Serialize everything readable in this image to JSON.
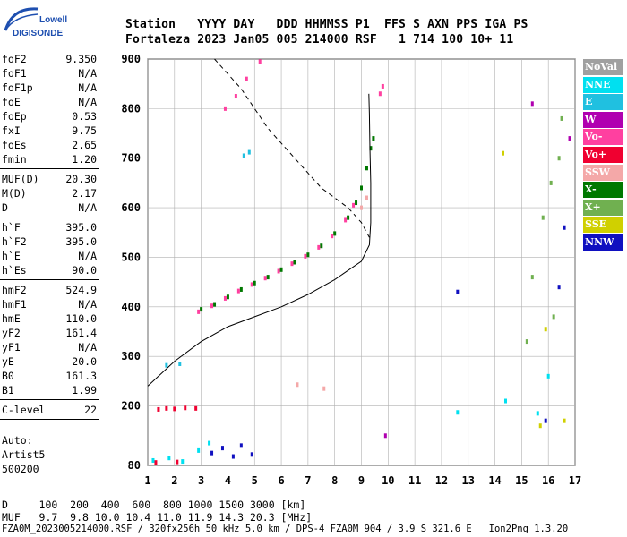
{
  "logo": {
    "line1": "Lowell",
    "line2": "DIGISONDE"
  },
  "header": {
    "labels": "Station   YYYY DAY   DDD HHMMSS P1  FFS S AXN PPS IGA PS",
    "values": "Fortaleza 2023 Jan05 005 214000 RSF   1 714 100 10+ 11"
  },
  "params": {
    "group1": [
      {
        "label": "foF2",
        "value": "9.350"
      },
      {
        "label": "foF1",
        "value": "N/A"
      },
      {
        "label": "foF1p",
        "value": "N/A"
      },
      {
        "label": "foE",
        "value": "N/A"
      },
      {
        "label": "foEp",
        "value": "0.53"
      },
      {
        "label": "fxI",
        "value": "9.75"
      },
      {
        "label": "foEs",
        "value": "2.65"
      },
      {
        "label": "fmin",
        "value": "1.20"
      }
    ],
    "group2": [
      {
        "label": "MUF(D)",
        "value": "20.30"
      },
      {
        "label": "M(D)",
        "value": "2.17"
      },
      {
        "label": "D",
        "value": "N/A"
      }
    ],
    "group3": [
      {
        "label": "h`F",
        "value": "395.0"
      },
      {
        "label": "h`F2",
        "value": "395.0"
      },
      {
        "label": "h`E",
        "value": "N/A"
      },
      {
        "label": "h`Es",
        "value": "90.0"
      }
    ],
    "group4": [
      {
        "label": "hmF2",
        "value": "524.9"
      },
      {
        "label": "hmF1",
        "value": "N/A"
      },
      {
        "label": "hmE",
        "value": "110.0"
      },
      {
        "label": "yF2",
        "value": "161.4"
      },
      {
        "label": "yF1",
        "value": "N/A"
      },
      {
        "label": "yE",
        "value": "20.0"
      },
      {
        "label": "B0",
        "value": "161.3"
      },
      {
        "label": "B1",
        "value": "1.99"
      }
    ],
    "group5": [
      {
        "label": "C-level",
        "value": "22"
      }
    ]
  },
  "auto": {
    "line1": "Auto:",
    "line2": "Artist5",
    "line3": "500200"
  },
  "legend": [
    {
      "label": "NoVal",
      "color": "#a0a0a0"
    },
    {
      "label": "NNE",
      "color": "#00e0f0"
    },
    {
      "label": "E",
      "color": "#20c0e0"
    },
    {
      "label": "W",
      "color": "#b000b0"
    },
    {
      "label": "Vo-",
      "color": "#ff40a0"
    },
    {
      "label": "Vo+",
      "color": "#f00030"
    },
    {
      "label": "SSW",
      "color": "#f4a8a8"
    },
    {
      "label": "X-",
      "color": "#007800"
    },
    {
      "label": "X+",
      "color": "#70b050"
    },
    {
      "label": "SSE",
      "color": "#d0d000"
    },
    {
      "label": "NNW",
      "color": "#1010c0"
    }
  ],
  "footer": {
    "line1": "D     100  200  400  600  800 1000 1500 3000 [km]",
    "line2": "MUF   9.7  9.8 10.0 10.4 11.0 11.9 14.3 20.3 [MHz]",
    "line3": "FZA0M_2023005214000.RSF / 320fx256h 50 kHz 5.0 km / DPS-4 FZA0M 904 / 3.9 S 321.6 E   Ion2Png 1.3.20"
  },
  "chart_data": {
    "type": "scatter",
    "title": "",
    "xlabel": "",
    "ylabel": "",
    "xlim": [
      1,
      17
    ],
    "ylim": [
      80,
      900
    ],
    "x_ticks": [
      1,
      2,
      3,
      4,
      5,
      6,
      7,
      8,
      9,
      10,
      11,
      12,
      13,
      14,
      15,
      16,
      17
    ],
    "y_ticks": [
      80,
      200,
      300,
      400,
      500,
      600,
      700,
      800,
      900
    ],
    "grid": true,
    "series": [
      {
        "name": "X-",
        "points": [
          [
            3.0,
            395
          ],
          [
            3.5,
            405
          ],
          [
            4.0,
            420
          ],
          [
            4.5,
            435
          ],
          [
            5.0,
            448
          ],
          [
            5.5,
            460
          ],
          [
            6.0,
            475
          ],
          [
            6.5,
            490
          ],
          [
            7.0,
            505
          ],
          [
            7.5,
            523
          ],
          [
            8.0,
            548
          ],
          [
            8.5,
            580
          ],
          [
            8.8,
            610
          ],
          [
            9.0,
            640
          ],
          [
            9.2,
            680
          ],
          [
            9.35,
            720
          ],
          [
            9.45,
            740
          ]
        ]
      },
      {
        "name": "Vo-",
        "points": [
          [
            2.9,
            390
          ],
          [
            3.4,
            402
          ],
          [
            3.9,
            417
          ],
          [
            4.4,
            432
          ],
          [
            4.9,
            445
          ],
          [
            5.4,
            458
          ],
          [
            5.9,
            472
          ],
          [
            6.4,
            487
          ],
          [
            6.9,
            502
          ],
          [
            7.4,
            520
          ],
          [
            7.9,
            543
          ],
          [
            8.4,
            575
          ],
          [
            8.7,
            605
          ],
          [
            3.9,
            800
          ],
          [
            4.3,
            825
          ],
          [
            4.7,
            860
          ],
          [
            5.2,
            895
          ],
          [
            9.7,
            830
          ],
          [
            9.8,
            845
          ]
        ]
      },
      {
        "name": "Vo+",
        "points": [
          [
            1.4,
            193
          ],
          [
            1.7,
            195
          ],
          [
            2.0,
            194
          ],
          [
            2.4,
            196
          ],
          [
            2.8,
            195
          ],
          [
            1.3,
            86
          ],
          [
            2.1,
            87
          ]
        ]
      },
      {
        "name": "NNW",
        "points": [
          [
            3.4,
            105
          ],
          [
            3.8,
            115
          ],
          [
            4.2,
            98
          ],
          [
            4.5,
            120
          ],
          [
            4.9,
            102
          ],
          [
            12.6,
            430
          ],
          [
            15.9,
            170
          ],
          [
            16.4,
            440
          ],
          [
            16.6,
            560
          ]
        ]
      },
      {
        "name": "NNE",
        "points": [
          [
            1.2,
            90
          ],
          [
            1.8,
            95
          ],
          [
            2.3,
            88
          ],
          [
            2.9,
            110
          ],
          [
            3.3,
            125
          ],
          [
            12.6,
            187
          ],
          [
            14.4,
            210
          ],
          [
            15.6,
            185
          ],
          [
            16.0,
            260
          ]
        ]
      },
      {
        "name": "X+",
        "points": [
          [
            15.4,
            460
          ],
          [
            15.8,
            580
          ],
          [
            16.1,
            650
          ],
          [
            16.4,
            700
          ],
          [
            16.5,
            780
          ],
          [
            15.2,
            330
          ],
          [
            16.2,
            380
          ]
        ]
      },
      {
        "name": "SSE",
        "points": [
          [
            14.3,
            710
          ],
          [
            15.7,
            160
          ],
          [
            16.6,
            170
          ],
          [
            15.9,
            355
          ]
        ]
      },
      {
        "name": "SSW",
        "points": [
          [
            6.6,
            243
          ],
          [
            7.6,
            235
          ],
          [
            9.2,
            620
          ],
          [
            9.0,
            600
          ]
        ]
      },
      {
        "name": "W",
        "points": [
          [
            9.9,
            140
          ],
          [
            16.8,
            740
          ],
          [
            15.4,
            810
          ]
        ]
      },
      {
        "name": "E",
        "points": [
          [
            4.6,
            705
          ],
          [
            4.8,
            712
          ],
          [
            1.7,
            282
          ],
          [
            2.2,
            285
          ]
        ]
      }
    ],
    "profile_curve": [
      [
        1.0,
        240
      ],
      [
        2.0,
        290
      ],
      [
        3.0,
        330
      ],
      [
        4.0,
        360
      ],
      [
        5.0,
        380
      ],
      [
        6.0,
        400
      ],
      [
        7.0,
        425
      ],
      [
        8.0,
        455
      ],
      [
        9.0,
        492
      ],
      [
        9.3,
        525
      ],
      [
        9.35,
        570
      ],
      [
        9.35,
        650
      ],
      [
        9.32,
        720
      ],
      [
        9.3,
        790
      ],
      [
        9.28,
        830
      ]
    ],
    "model_curve": [
      [
        3.5,
        900
      ],
      [
        4.5,
        840
      ],
      [
        5.5,
        760
      ],
      [
        6.5,
        700
      ],
      [
        7.5,
        640
      ],
      [
        8.5,
        600
      ],
      [
        9.0,
        570
      ],
      [
        9.3,
        540
      ]
    ]
  }
}
